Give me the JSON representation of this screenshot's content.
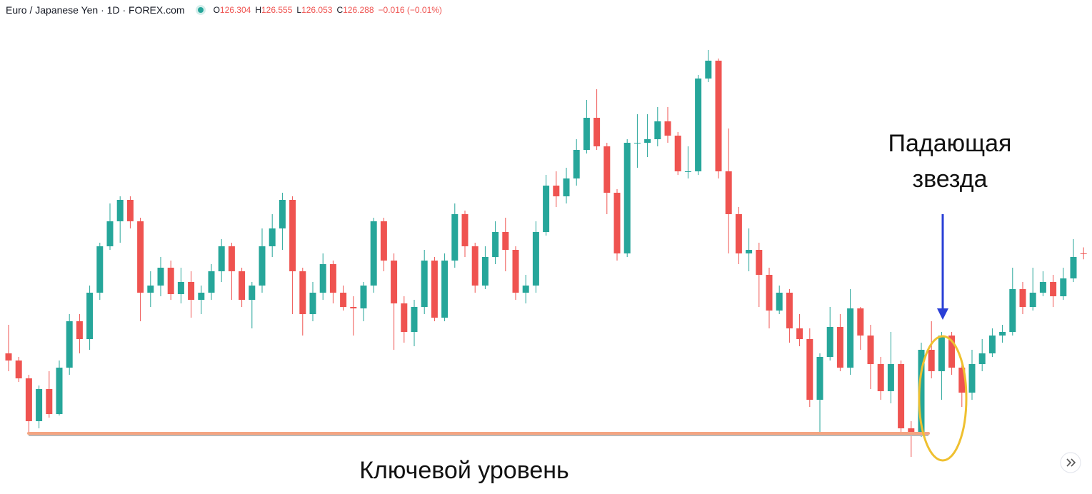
{
  "header": {
    "symbol": "Euro / Japanese Yen · 1D · FOREX.com",
    "ohlc": [
      {
        "label": "O",
        "value": "126.304"
      },
      {
        "label": "H",
        "value": "126.555"
      },
      {
        "label": "L",
        "value": "126.053"
      },
      {
        "label": "C",
        "value": "126.288"
      }
    ],
    "change": "−0.016 (−0.01%)"
  },
  "chart_data": {
    "type": "candlestick",
    "up_color": "#26a69a",
    "down_color": "#ef5350",
    "ylim": [
      116.19,
      136.05
    ],
    "open": [
      122.1,
      121.8,
      121.05,
      119.25,
      120.6,
      119.55,
      121.5,
      123.45,
      122.7,
      124.65,
      126.6,
      127.65,
      128.55,
      127.65,
      124.65,
      124.95,
      125.7,
      124.59,
      125.1,
      124.35,
      124.65,
      125.55,
      126.6,
      125.55,
      124.35,
      124.95,
      126.6,
      127.35,
      128.55,
      125.55,
      123.75,
      124.65,
      125.85,
      124.65,
      124.05,
      123.99,
      124.95,
      127.65,
      126.0,
      124.2,
      123.0,
      124.05,
      126.0,
      123.6,
      126.0,
      127.95,
      126.6,
      124.95,
      126.15,
      127.2,
      126.45,
      124.65,
      124.95,
      127.2,
      129.15,
      128.7,
      129.45,
      130.65,
      132.0,
      130.8,
      128.85,
      126.3,
      130.95,
      130.95,
      131.1,
      131.85,
      131.25,
      129.75,
      129.75,
      133.65,
      134.4,
      129.75,
      127.95,
      126.3,
      126.45,
      125.4,
      123.9,
      124.65,
      123.15,
      122.7,
      120.15,
      121.95,
      123.21,
      121.5,
      123.99,
      122.85,
      121.65,
      120.51,
      121.65,
      118.95,
      118.71,
      122.25,
      121.35,
      122.85,
      121.5,
      120.45,
      121.65,
      122.1,
      122.85,
      123.0,
      124.8,
      124.05,
      124.65,
      125.1,
      124.5,
      125.25,
      126.304
    ],
    "high": [
      123.3,
      121.95,
      121.2,
      120.75,
      121.35,
      121.8,
      123.75,
      123.75,
      124.95,
      126.75,
      128.4,
      128.7,
      128.7,
      127.8,
      125.55,
      126.15,
      126.0,
      125.7,
      125.55,
      124.95,
      125.85,
      126.9,
      126.75,
      125.7,
      125.1,
      127.35,
      127.95,
      128.85,
      128.7,
      125.7,
      125.1,
      126.3,
      126.0,
      124.95,
      124.5,
      125.1,
      127.8,
      127.8,
      126.3,
      124.5,
      124.35,
      126.45,
      126.15,
      126.3,
      128.4,
      128.1,
      126.75,
      126.6,
      127.65,
      127.8,
      126.6,
      125.4,
      127.65,
      129.6,
      129.75,
      129.9,
      131.1,
      132.75,
      133.2,
      130.95,
      129.0,
      131.1,
      132.15,
      132.15,
      132.45,
      132.45,
      131.4,
      130.8,
      133.8,
      134.85,
      134.49,
      131.55,
      128.25,
      127.35,
      126.75,
      125.7,
      124.95,
      124.8,
      123.75,
      123.15,
      122.1,
      124.05,
      123.75,
      124.8,
      124.05,
      123.3,
      121.95,
      123.0,
      121.8,
      119.25,
      122.55,
      123.45,
      123.0,
      123.0,
      121.8,
      122.25,
      122.7,
      123.15,
      123.3,
      125.7,
      125.1,
      125.7,
      125.55,
      125.4,
      125.7,
      126.9,
      126.555
    ],
    "low": [
      121.35,
      120.9,
      118.8,
      118.95,
      119.4,
      119.49,
      121.2,
      122.1,
      122.25,
      124.35,
      126.45,
      126.75,
      127.35,
      123.45,
      124.05,
      124.5,
      124.35,
      124.2,
      123.6,
      123.75,
      124.35,
      125.1,
      124.35,
      124.05,
      123.15,
      124.65,
      126.15,
      126.45,
      123.75,
      122.85,
      123.45,
      124.35,
      124.2,
      123.9,
      122.85,
      123.45,
      124.65,
      125.55,
      122.25,
      122.55,
      122.4,
      123.75,
      123.45,
      123.45,
      125.7,
      126.15,
      124.65,
      124.8,
      125.85,
      125.55,
      124.35,
      124.2,
      124.65,
      127.05,
      128.25,
      128.4,
      129.15,
      130.5,
      130.65,
      127.95,
      126.0,
      126.15,
      129.9,
      130.35,
      130.8,
      130.95,
      129.6,
      129.45,
      129.6,
      133.5,
      129.45,
      126.3,
      125.85,
      125.55,
      124.05,
      123.15,
      123.75,
      122.55,
      122.4,
      119.85,
      118.65,
      121.8,
      121.35,
      121.2,
      122.25,
      120.6,
      120.15,
      120.0,
      118.8,
      117.75,
      118.59,
      121.05,
      120.15,
      121.2,
      119.85,
      120.15,
      121.35,
      121.95,
      122.55,
      122.85,
      123.75,
      123.9,
      124.5,
      124.05,
      124.35,
      125.1,
      126.053
    ],
    "close": [
      121.8,
      121.05,
      119.25,
      120.6,
      119.55,
      121.5,
      123.45,
      122.7,
      124.65,
      126.6,
      127.65,
      128.55,
      127.65,
      124.65,
      124.95,
      125.7,
      124.59,
      125.1,
      124.35,
      124.65,
      125.55,
      126.6,
      125.55,
      124.35,
      124.95,
      126.6,
      127.35,
      128.55,
      125.55,
      123.75,
      124.65,
      125.85,
      124.65,
      124.05,
      123.99,
      124.95,
      127.65,
      126.0,
      124.2,
      123.0,
      124.05,
      126.0,
      123.6,
      126.0,
      127.95,
      126.6,
      124.95,
      126.15,
      127.2,
      126.45,
      124.65,
      124.95,
      127.2,
      129.15,
      128.7,
      129.45,
      130.65,
      132.0,
      130.8,
      128.85,
      126.3,
      130.95,
      130.95,
      131.1,
      131.85,
      131.25,
      129.75,
      129.75,
      133.65,
      134.4,
      129.75,
      127.95,
      126.3,
      126.45,
      125.4,
      123.9,
      124.65,
      123.15,
      122.7,
      120.15,
      121.95,
      123.21,
      121.5,
      123.99,
      122.85,
      121.65,
      120.51,
      121.65,
      118.95,
      118.71,
      122.25,
      121.35,
      122.85,
      121.5,
      120.45,
      121.65,
      122.1,
      122.85,
      123.0,
      124.8,
      124.05,
      124.65,
      125.1,
      124.5,
      125.25,
      126.15,
      126.288
    ],
    "key_level": {
      "value": 118.74,
      "label": "Ключевой уровень",
      "color": "#f4a582"
    },
    "pattern": {
      "lines": [
        "Падающая",
        "звезда"
      ],
      "arrow_color": "#2a3fd6",
      "ellipse_color": "#efc030"
    }
  }
}
